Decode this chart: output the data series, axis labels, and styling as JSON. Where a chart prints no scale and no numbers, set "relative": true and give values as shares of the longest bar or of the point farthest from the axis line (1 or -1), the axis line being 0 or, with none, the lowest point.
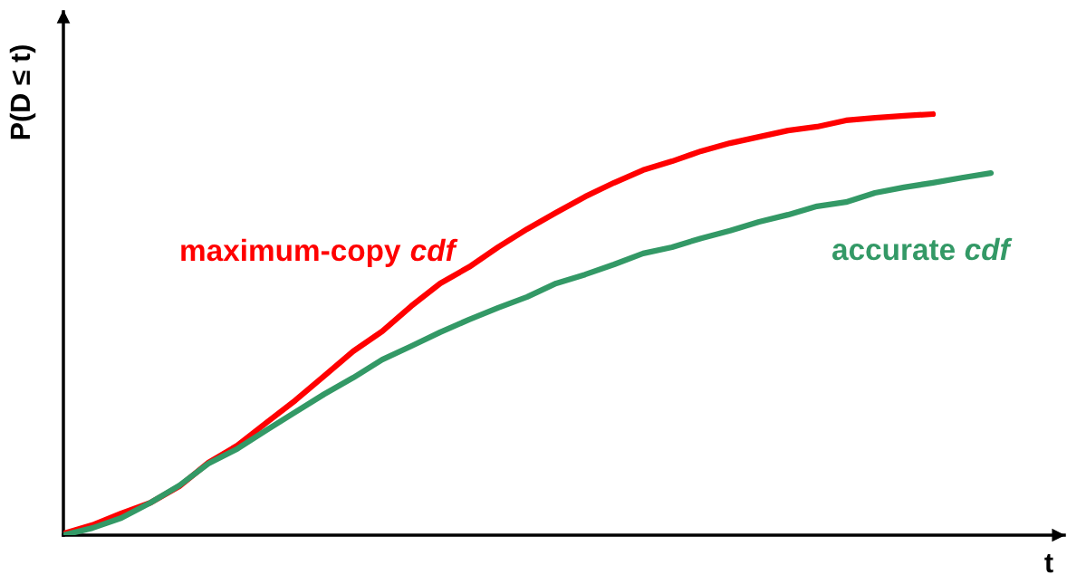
{
  "chart_data": {
    "type": "line",
    "relative": true,
    "ylabel": "P(D ≤ t)",
    "xlabel": "t",
    "categories": [
      null,
      null,
      null,
      null,
      null,
      null,
      null,
      null,
      null,
      null,
      null,
      null,
      null,
      null,
      null,
      null,
      null,
      null,
      null,
      null,
      null,
      null,
      null,
      null,
      null,
      null,
      null,
      null,
      null,
      null,
      null,
      null,
      null
    ],
    "series": [
      {
        "name": "maximum-copy cdf",
        "color": "#ff0000",
        "values": [
          0.004,
          0.024,
          0.052,
          0.077,
          0.116,
          0.172,
          0.213,
          0.267,
          0.32,
          0.378,
          0.437,
          0.484,
          0.544,
          0.598,
          0.637,
          0.684,
          0.727,
          0.766,
          0.804,
          0.837,
          0.867,
          0.888,
          0.912,
          0.931,
          0.946,
          0.961,
          0.97,
          0.985,
          0.991,
          0.996,
          1.0,
          null,
          null
        ]
      },
      {
        "name": "accurate cdf",
        "color": "#339966",
        "values": [
          0,
          0.017,
          0.041,
          0.077,
          0.118,
          0.17,
          0.205,
          0.249,
          0.292,
          0.335,
          0.374,
          0.417,
          0.449,
          0.482,
          0.512,
          0.54,
          0.566,
          0.598,
          0.619,
          0.643,
          0.669,
          0.684,
          0.705,
          0.723,
          0.744,
          0.761,
          0.781,
          0.791,
          0.813,
          0.826,
          0.837,
          0.849,
          0.86
        ]
      }
    ]
  }
}
